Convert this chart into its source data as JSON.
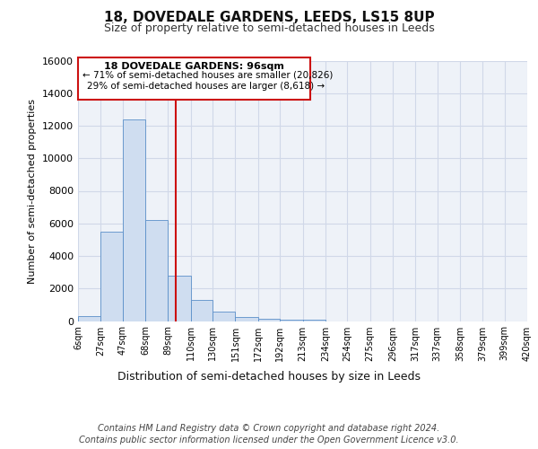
{
  "title1": "18, DOVEDALE GARDENS, LEEDS, LS15 8UP",
  "title2": "Size of property relative to semi-detached houses in Leeds",
  "xlabel": "Distribution of semi-detached houses by size in Leeds",
  "ylabel": "Number of semi-detached properties",
  "footer1": "Contains HM Land Registry data © Crown copyright and database right 2024.",
  "footer2": "Contains public sector information licensed under the Open Government Licence v3.0.",
  "annotation_title": "18 DOVEDALE GARDENS: 96sqm",
  "annotation_line1": "← 71% of semi-detached houses are smaller (20,826)",
  "annotation_line2": "29% of semi-detached houses are larger (8,618) →",
  "bin_labels": [
    "6sqm",
    "27sqm",
    "47sqm",
    "68sqm",
    "89sqm",
    "110sqm",
    "130sqm",
    "151sqm",
    "172sqm",
    "192sqm",
    "213sqm",
    "234sqm",
    "254sqm",
    "275sqm",
    "296sqm",
    "317sqm",
    "337sqm",
    "358sqm",
    "379sqm",
    "399sqm",
    "420sqm"
  ],
  "bin_edges": [
    6,
    27,
    47,
    68,
    89,
    110,
    130,
    151,
    172,
    192,
    213,
    234,
    254,
    275,
    296,
    317,
    337,
    358,
    379,
    399,
    420
  ],
  "bar_heights": [
    280,
    5500,
    12400,
    6200,
    2800,
    1300,
    600,
    250,
    160,
    100,
    100,
    0,
    0,
    0,
    0,
    0,
    0,
    0,
    0,
    0
  ],
  "bar_color": "#cfddf0",
  "bar_edge_color": "#5b8fc9",
  "grid_color": "#d0d8e8",
  "bg_color": "#eef2f8",
  "property_line_x": 96,
  "property_line_color": "#cc1111",
  "annotation_box_edge": "#cc1111",
  "ylim": [
    0,
    16000
  ],
  "yticks": [
    0,
    2000,
    4000,
    6000,
    8000,
    10000,
    12000,
    14000,
    16000
  ]
}
